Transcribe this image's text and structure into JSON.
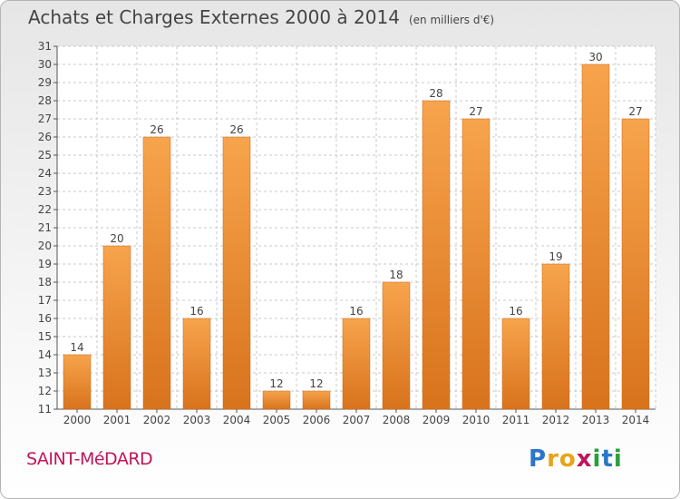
{
  "header": {
    "title": "Achats et Charges Externes 2000 à 2014",
    "unit": "(en milliers d'€)"
  },
  "footer": {
    "commune": "SAINT-MéDARD",
    "logo_letters": [
      {
        "ch": "P",
        "color": "#2b76c6"
      },
      {
        "ch": "r",
        "color": "#e8a317"
      },
      {
        "ch": "o",
        "color": "#e8a317"
      },
      {
        "ch": "x",
        "color": "#c0145a"
      },
      {
        "ch": "i",
        "color": "#2b9e3c"
      },
      {
        "ch": "t",
        "color": "#2b76c6"
      },
      {
        "ch": "i",
        "color": "#2b9e3c"
      }
    ]
  },
  "chart_data": {
    "type": "bar",
    "categories": [
      "2000",
      "2001",
      "2002",
      "2003",
      "2004",
      "2005",
      "2006",
      "2007",
      "2008",
      "2009",
      "2010",
      "2011",
      "2012",
      "2013",
      "2014"
    ],
    "values": [
      14,
      20,
      26,
      16,
      26,
      12,
      12,
      16,
      18,
      28,
      27,
      16,
      19,
      30,
      27
    ],
    "ylim": [
      11,
      31
    ],
    "yticks": [
      11,
      12,
      13,
      14,
      15,
      16,
      17,
      18,
      19,
      20,
      21,
      22,
      23,
      24,
      25,
      26,
      27,
      28,
      29,
      30,
      31
    ],
    "grid": true,
    "bar_color_top": "#f7a44d",
    "bar_color_bottom": "#d8731c",
    "grid_color": "#c8c8c8"
  }
}
